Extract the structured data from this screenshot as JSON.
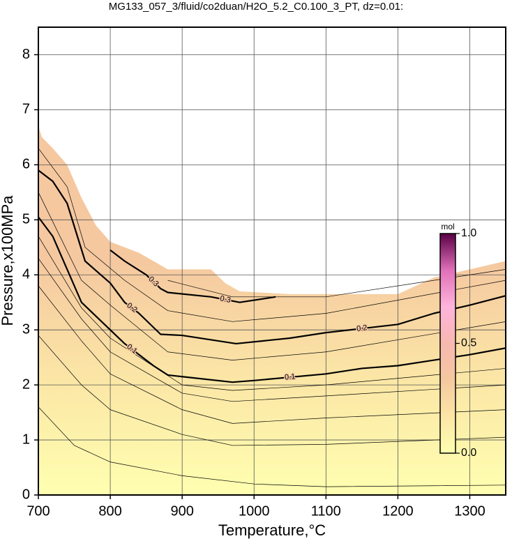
{
  "chart_data": {
    "type": "contour",
    "title": "MG133_057_3/fluid/co2duan/H2O_5.2_C0.100_3_PT, dz=0.01:",
    "x_label": "Temperature,°C",
    "y_label": "Pressure,x100MPa",
    "xlim": [
      700,
      1350
    ],
    "ylim": [
      0,
      8.5
    ],
    "xticks": [
      700,
      800,
      900,
      1000,
      1100,
      1200,
      1300
    ],
    "yticks": [
      0,
      1,
      2,
      3,
      4,
      5,
      6,
      7,
      8
    ],
    "grid": true,
    "boundary": {
      "x": [
        700,
        705,
        720,
        740,
        760,
        780,
        800,
        840,
        880,
        940,
        960,
        980,
        1050,
        1150,
        1200,
        1250,
        1350
      ],
      "y": [
        6.7,
        6.5,
        6.3,
        6.0,
        5.4,
        4.9,
        4.6,
        4.4,
        4.1,
        4.1,
        3.85,
        3.7,
        3.65,
        3.65,
        3.65,
        3.95,
        4.25
      ]
    },
    "contours": [
      {
        "level": 0.01,
        "x": [
          700,
          750,
          800,
          900,
          1000,
          1100,
          1350
        ],
        "y": [
          1.6,
          0.9,
          0.6,
          0.35,
          0.2,
          0.15,
          0.18
        ]
      },
      {
        "level": 0.02,
        "x": [
          700,
          760,
          800,
          900,
          970,
          1100,
          1350
        ],
        "y": [
          2.9,
          2.0,
          1.55,
          1.1,
          0.9,
          0.92,
          1.05
        ]
      },
      {
        "level": 0.04,
        "x": [
          700,
          760,
          800,
          900,
          970,
          1100,
          1350
        ],
        "y": [
          3.8,
          2.8,
          2.2,
          1.55,
          1.3,
          1.4,
          1.55
        ]
      },
      {
        "level": 0.06,
        "x": [
          700,
          760,
          800,
          900,
          970,
          1100,
          1350
        ],
        "y": [
          4.3,
          3.2,
          2.6,
          1.85,
          1.7,
          1.8,
          2.0
        ]
      },
      {
        "level": 0.08,
        "x": [
          700,
          760,
          800,
          900,
          970,
          1100,
          1350
        ],
        "y": [
          4.7,
          3.4,
          2.85,
          2.0,
          1.9,
          2.0,
          2.3
        ]
      },
      {
        "level": 0.1,
        "x": [
          700,
          720,
          740,
          760,
          780,
          800,
          820,
          840,
          860,
          880,
          900,
          970,
          1000,
          1100,
          1150,
          1200,
          1300,
          1350
        ],
        "y": [
          5.05,
          4.7,
          4.1,
          3.5,
          3.25,
          3.0,
          2.75,
          2.55,
          2.35,
          2.18,
          2.15,
          2.05,
          2.08,
          2.2,
          2.3,
          2.35,
          2.55,
          2.67
        ]
      },
      {
        "level": 0.15,
        "x": [
          700,
          760,
          800,
          880,
          970,
          1100,
          1350
        ],
        "y": [
          5.5,
          3.9,
          3.45,
          2.6,
          2.45,
          2.6,
          3.15
        ]
      },
      {
        "level": 0.2,
        "x": [
          700,
          720,
          740,
          765,
          800,
          820,
          840,
          870,
          900,
          975,
          1050,
          1100,
          1200,
          1250,
          1300,
          1350
        ],
        "y": [
          5.9,
          5.7,
          5.3,
          4.25,
          3.85,
          3.5,
          3.3,
          2.92,
          2.9,
          2.75,
          2.85,
          2.95,
          3.1,
          3.3,
          3.45,
          3.62
        ]
      },
      {
        "level": 0.25,
        "x": [
          700,
          740,
          765,
          820,
          880,
          970,
          1100,
          1350
        ],
        "y": [
          6.3,
          5.6,
          4.5,
          3.9,
          3.35,
          3.15,
          3.3,
          3.9
        ]
      },
      {
        "level": 0.3,
        "x": [
          800,
          820,
          850,
          870,
          880,
          940,
          980,
          1030
        ],
        "y": [
          4.45,
          4.25,
          4.0,
          3.75,
          3.68,
          3.6,
          3.5,
          3.6
        ]
      },
      {
        "level": 0.35,
        "x": [
          880,
          970,
          1100,
          1350
        ],
        "y": [
          3.9,
          3.6,
          3.6,
          4.1
        ]
      }
    ],
    "colorbar": {
      "label": "mol",
      "lim": [
        0,
        1
      ],
      "ticks": [
        {
          "value": 0,
          "label": "0.0"
        },
        {
          "value": 0.5,
          "label": "0.5"
        },
        {
          "value": 1,
          "label": "1.0"
        }
      ],
      "colors": [
        "#ffffb0",
        "#fbe6a6",
        "#f5c8a0",
        "#f7b8b0",
        "#ffb4dc",
        "#e070b8",
        "#5a0046"
      ]
    }
  }
}
